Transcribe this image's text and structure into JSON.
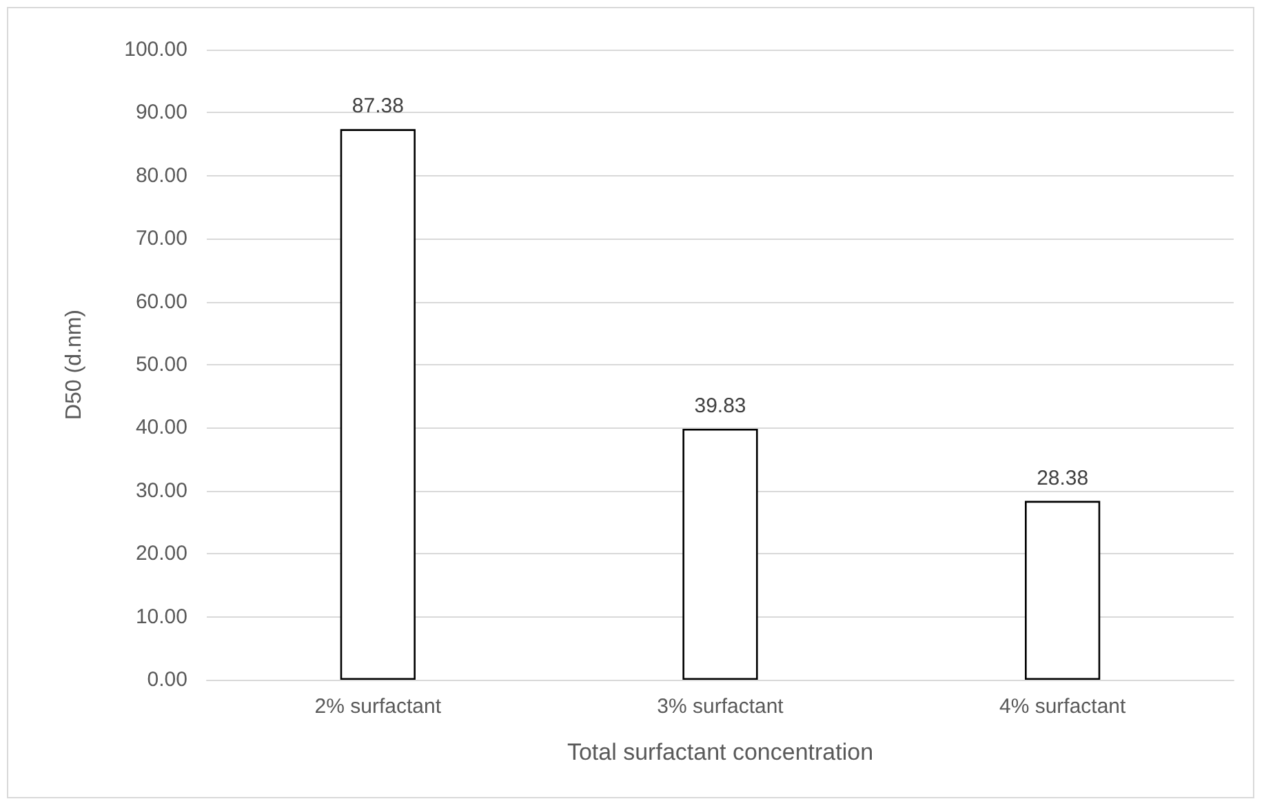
{
  "chart_data": {
    "type": "bar",
    "xlabel": "Total surfactant concentration",
    "ylabel": "D50 (d.nm)",
    "categories": [
      "2% surfactant",
      "3% surfactant",
      "4% surfactant"
    ],
    "values": [
      87.38,
      39.83,
      28.38
    ],
    "color": "#ffffff",
    "data_labels": true,
    "ylim": [
      0,
      100
    ],
    "yticks": [
      {
        "value": 0,
        "label": "0.00"
      },
      {
        "value": 10,
        "label": "10.00"
      },
      {
        "value": 20,
        "label": "20.00"
      },
      {
        "value": 30,
        "label": "30.00"
      },
      {
        "value": 40,
        "label": "40.00"
      },
      {
        "value": 50,
        "label": "50.00"
      },
      {
        "value": 60,
        "label": "60.00"
      },
      {
        "value": 70,
        "label": "70.00"
      },
      {
        "value": 80,
        "label": "80.00"
      },
      {
        "value": 90,
        "label": "90.00"
      },
      {
        "value": 100,
        "label": "100.00"
      }
    ],
    "grid": "y"
  }
}
